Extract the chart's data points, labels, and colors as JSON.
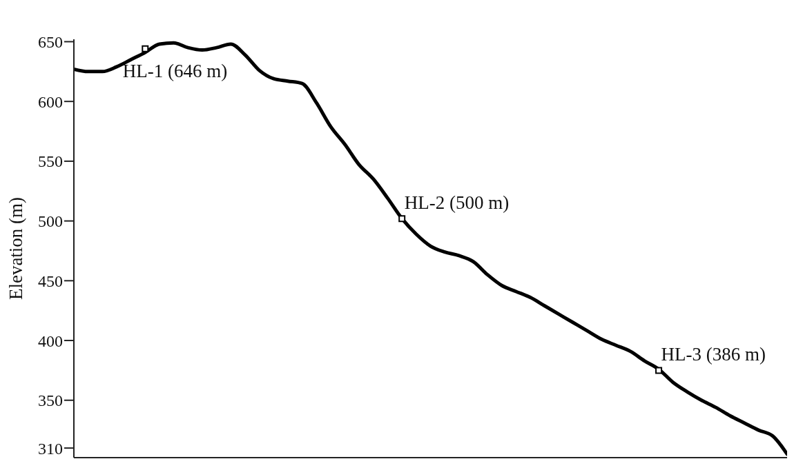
{
  "chart_data": {
    "type": "line",
    "ylabel": "Elevation (m)",
    "categories": [
      null,
      null,
      null,
      null,
      null,
      null,
      null,
      null,
      null,
      null,
      null,
      null,
      null,
      null,
      null,
      null,
      null,
      null,
      null,
      null,
      null,
      null,
      null,
      null,
      null,
      null,
      null,
      null,
      null,
      null,
      null,
      null,
      null,
      null,
      null,
      null,
      null,
      null,
      null,
      null,
      null,
      null,
      null,
      null,
      null,
      null,
      null,
      null,
      null,
      null,
      null
    ],
    "series": [
      {
        "color": "#000000",
        "values": [
          627,
          625,
          625,
          629,
          635,
          641,
          648,
          649,
          645,
          643,
          645,
          648,
          639,
          626,
          619,
          617,
          615,
          599,
          579,
          564,
          547,
          535,
          519,
          502,
          489,
          479,
          474,
          471,
          466,
          455,
          446,
          441,
          436,
          429,
          422,
          415,
          408,
          401,
          396,
          391,
          383,
          376,
          365,
          357,
          350,
          344,
          337,
          331,
          325,
          320,
          305
        ]
      },
      {
        "type": "scatter",
        "color": "#000000",
        "marker": "square",
        "values": [
          null,
          null,
          null,
          null,
          null,
          644,
          null,
          null,
          null,
          null,
          null,
          null,
          null,
          null,
          null,
          null,
          null,
          null,
          null,
          null,
          null,
          null,
          null,
          502,
          null,
          null,
          null,
          null,
          null,
          null,
          null,
          null,
          null,
          null,
          null,
          null,
          null,
          null,
          null,
          null,
          null,
          375,
          null,
          null,
          null,
          null,
          null,
          null,
          null,
          null,
          null
        ]
      }
    ],
    "ylim": [
      302,
      652
    ],
    "yticks": [
      310,
      350,
      400,
      450,
      500,
      550,
      600,
      650
    ],
    "annotations": [
      "HL-1 (646 m)",
      "HL-2 (500 m)",
      "HL-3 (386 m)"
    ]
  }
}
